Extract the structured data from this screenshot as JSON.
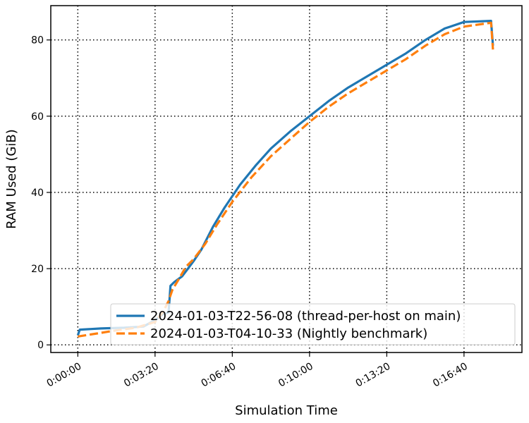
{
  "chart_data": {
    "type": "line",
    "title": "",
    "xlabel": "Simulation Time",
    "ylabel": "RAM Used (GiB)",
    "x_unit": "seconds",
    "xlim": [
      -70,
      1150
    ],
    "ylim": [
      -2,
      89
    ],
    "x_ticks": [
      {
        "value": 0,
        "label": "0:00:00"
      },
      {
        "value": 200,
        "label": "0:03:20"
      },
      {
        "value": 400,
        "label": "0:06:40"
      },
      {
        "value": 600,
        "label": "0:10:00"
      },
      {
        "value": 800,
        "label": "0:13:20"
      },
      {
        "value": 1000,
        "label": "0:16:40"
      }
    ],
    "y_ticks": [
      {
        "value": 0,
        "label": "0"
      },
      {
        "value": 20,
        "label": "20"
      },
      {
        "value": 40,
        "label": "40"
      },
      {
        "value": 60,
        "label": "60"
      },
      {
        "value": 80,
        "label": "80"
      }
    ],
    "grid": true,
    "grid_style": "dotted",
    "legend_position": "lower-right",
    "series": [
      {
        "name": "2024-01-03-T22-56-08 (thread-per-host on main)",
        "color": "#1f77b4",
        "style": "solid",
        "points": [
          [
            0,
            2.5
          ],
          [
            5,
            4.0
          ],
          [
            60,
            4.3
          ],
          [
            120,
            4.5
          ],
          [
            170,
            4.8
          ],
          [
            200,
            6.5
          ],
          [
            220,
            8.0
          ],
          [
            235,
            8.5
          ],
          [
            240,
            15.5
          ],
          [
            250,
            16.5
          ],
          [
            270,
            18.0
          ],
          [
            285,
            20.0
          ],
          [
            300,
            22.0
          ],
          [
            320,
            25.0
          ],
          [
            350,
            31.0
          ],
          [
            380,
            36.0
          ],
          [
            420,
            42.0
          ],
          [
            460,
            47.0
          ],
          [
            500,
            51.5
          ],
          [
            550,
            56.0
          ],
          [
            600,
            60.0
          ],
          [
            650,
            64.0
          ],
          [
            700,
            67.5
          ],
          [
            750,
            70.5
          ],
          [
            800,
            73.5
          ],
          [
            850,
            76.5
          ],
          [
            900,
            80.0
          ],
          [
            950,
            83.0
          ],
          [
            1000,
            84.7
          ],
          [
            1070,
            85.0
          ],
          [
            1075,
            78.5
          ]
        ]
      },
      {
        "name": "2024-01-03-T04-10-33 (Nightly benchmark)",
        "color": "#ff7f0e",
        "style": "dashed",
        "points": [
          [
            0,
            2.2
          ],
          [
            50,
            3.0
          ],
          [
            100,
            3.8
          ],
          [
            150,
            4.5
          ],
          [
            200,
            6.0
          ],
          [
            220,
            8.5
          ],
          [
            235,
            11.5
          ],
          [
            245,
            14.5
          ],
          [
            260,
            17.0
          ],
          [
            280,
            20.5
          ],
          [
            300,
            22.5
          ],
          [
            330,
            26.5
          ],
          [
            360,
            31.5
          ],
          [
            400,
            37.5
          ],
          [
            450,
            44.0
          ],
          [
            500,
            49.5
          ],
          [
            550,
            54.0
          ],
          [
            600,
            58.5
          ],
          [
            650,
            62.5
          ],
          [
            700,
            66.0
          ],
          [
            750,
            69.0
          ],
          [
            800,
            72.0
          ],
          [
            850,
            75.0
          ],
          [
            900,
            78.5
          ],
          [
            950,
            81.5
          ],
          [
            1000,
            83.5
          ],
          [
            1070,
            84.5
          ],
          [
            1075,
            77.5
          ]
        ]
      }
    ]
  }
}
